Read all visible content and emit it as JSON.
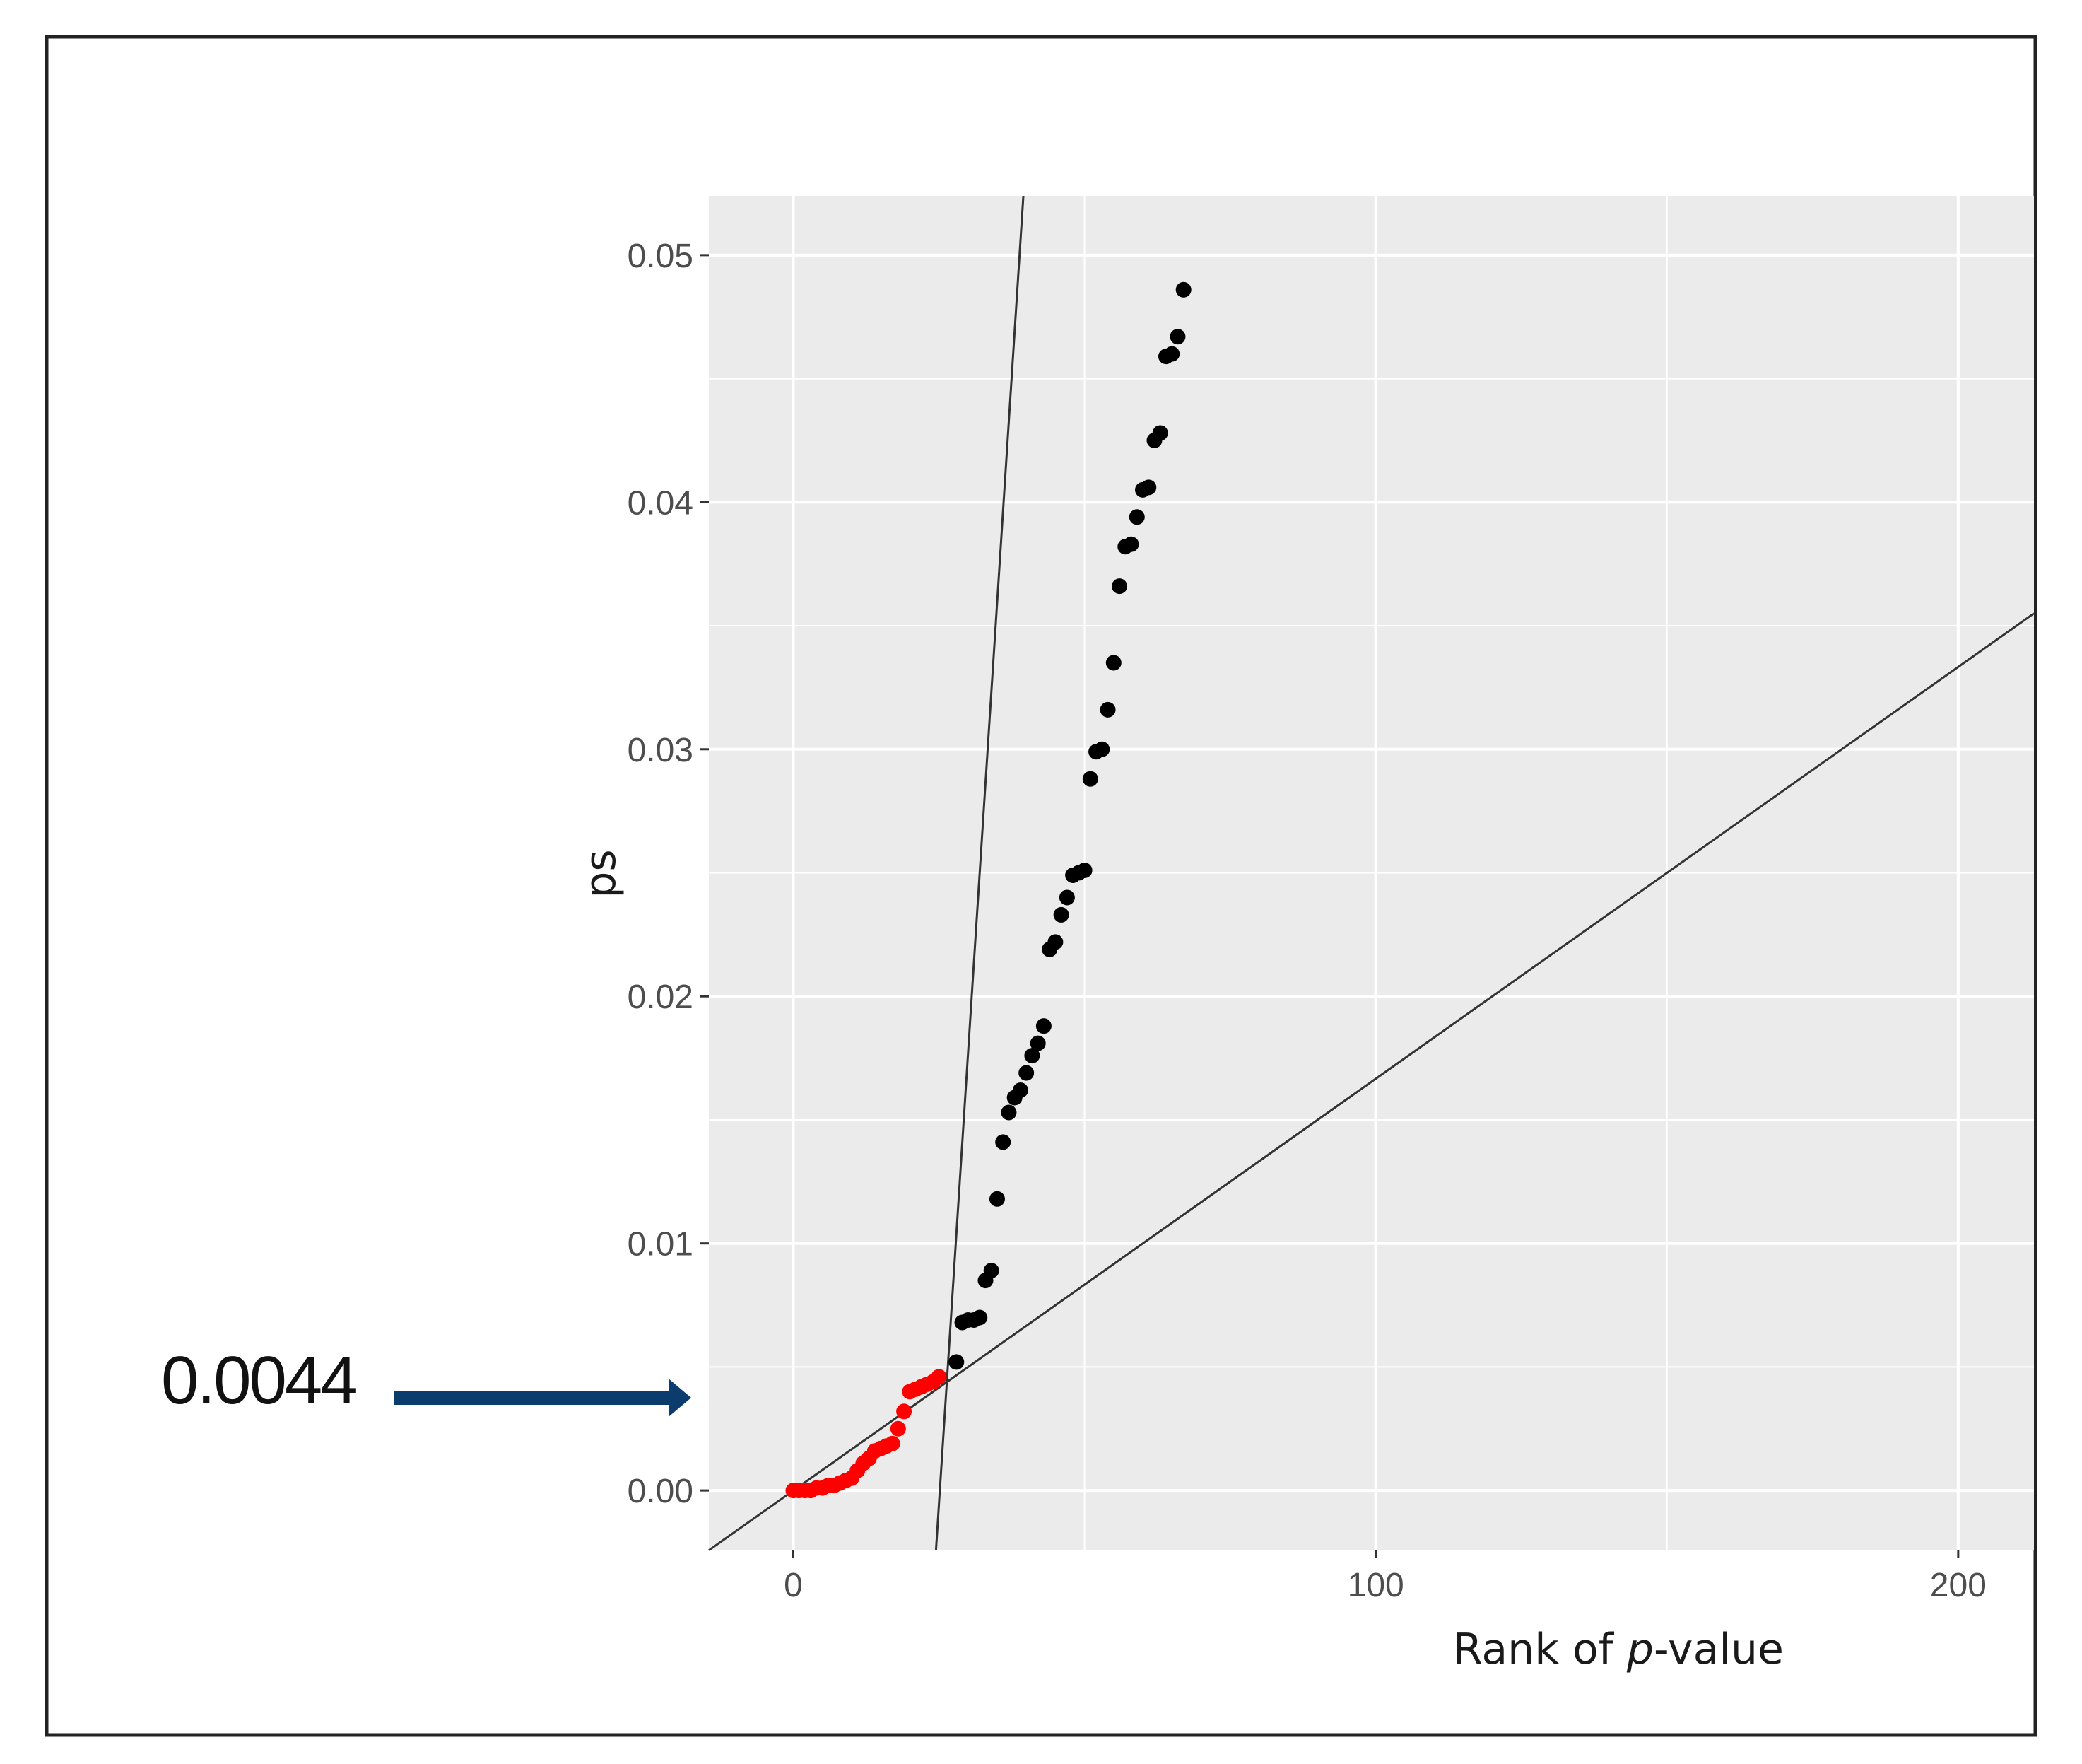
{
  "chart_data": {
    "type": "scatter",
    "title": "",
    "xlabel_prefix": "Rank of ",
    "xlabel_italic": "p",
    "xlabel_suffix": "-value",
    "ylabel": "ps",
    "xlim": [
      -14.5,
      213
    ],
    "ylim": [
      -0.0024,
      0.0524
    ],
    "x_ticks": [
      0,
      100,
      200
    ],
    "x_tick_labels": [
      "0",
      "100",
      "200"
    ],
    "y_ticks": [
      0.0,
      0.01,
      0.02,
      0.03,
      0.04,
      0.05
    ],
    "y_tick_labels": [
      "0.00",
      "0.01",
      "0.02",
      "0.03",
      "0.04",
      "0.05"
    ],
    "grid": true,
    "background": "#ebebeb",
    "colors": {
      "significant": "#ff0000",
      "not_significant": "#000000",
      "line": "#333333",
      "arrow": "#0b3c6e",
      "frame": "#222222"
    },
    "series": [
      {
        "color": "#ff0000",
        "points": [
          [
            0,
            0.0
          ],
          [
            1,
            0.0
          ],
          [
            2,
            0.0
          ],
          [
            3,
            0.0
          ],
          [
            4,
            0.0001
          ],
          [
            5,
            0.0001
          ],
          [
            6,
            0.0002
          ],
          [
            7,
            0.0002
          ],
          [
            8,
            0.0003
          ],
          [
            9,
            0.0004
          ],
          [
            10,
            0.0005
          ],
          [
            11,
            0.0008
          ],
          [
            12,
            0.0011
          ],
          [
            13,
            0.0013
          ],
          [
            14,
            0.0016
          ],
          [
            15,
            0.0017
          ],
          [
            16,
            0.0018
          ],
          [
            17,
            0.0019
          ],
          [
            18,
            0.0025
          ],
          [
            19,
            0.0032
          ],
          [
            20,
            0.004
          ],
          [
            21,
            0.0041
          ],
          [
            22,
            0.0042
          ],
          [
            23,
            0.0043
          ],
          [
            24,
            0.0044
          ],
          [
            25,
            0.0046
          ]
        ]
      },
      {
        "color": "#000000",
        "points": [
          [
            28,
            0.0052
          ],
          [
            29,
            0.0068
          ],
          [
            30,
            0.0069
          ],
          [
            31,
            0.0069
          ],
          [
            32,
            0.007
          ],
          [
            33,
            0.0085
          ],
          [
            34,
            0.0089
          ],
          [
            35,
            0.0118
          ],
          [
            36,
            0.0141
          ],
          [
            37,
            0.0153
          ],
          [
            38,
            0.0159
          ],
          [
            39,
            0.0162
          ],
          [
            40,
            0.0169
          ],
          [
            41,
            0.0176
          ],
          [
            42,
            0.0181
          ],
          [
            43,
            0.0188
          ],
          [
            44,
            0.0219
          ],
          [
            45,
            0.0222
          ],
          [
            46,
            0.0233
          ],
          [
            47,
            0.024
          ],
          [
            48,
            0.0249
          ],
          [
            49,
            0.025
          ],
          [
            50,
            0.0251
          ],
          [
            51,
            0.0288
          ],
          [
            52,
            0.0299
          ],
          [
            53,
            0.03
          ],
          [
            54,
            0.0316
          ],
          [
            55,
            0.0335
          ],
          [
            56,
            0.0366
          ],
          [
            57,
            0.0382
          ],
          [
            58,
            0.0383
          ],
          [
            59,
            0.0394
          ],
          [
            60,
            0.0405
          ],
          [
            61,
            0.0406
          ],
          [
            62,
            0.0425
          ],
          [
            63,
            0.0428
          ],
          [
            64,
            0.0459
          ],
          [
            65,
            0.046
          ],
          [
            66,
            0.0467
          ],
          [
            67,
            0.0486
          ]
        ]
      }
    ],
    "lines": [
      {
        "x1": -14.5,
        "y1": -0.00242,
        "x2": 213,
        "y2": 0.0355
      },
      {
        "x1": 24.5,
        "y1": -0.0024,
        "x2": 39.5,
        "y2": 0.0524
      }
    ],
    "annotation": {
      "text": "0.0044",
      "y": 0.0039
    }
  }
}
